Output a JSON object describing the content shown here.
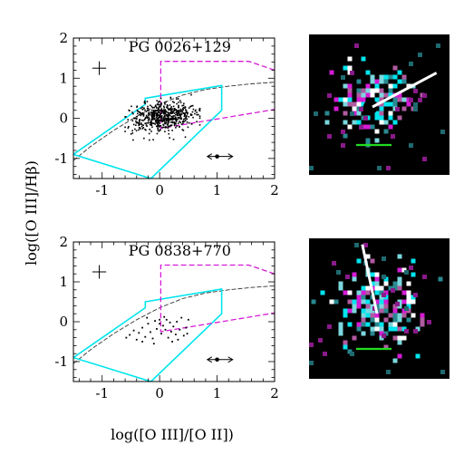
{
  "figure": {
    "ylabel": "log([O III]/Hβ)",
    "xlabel": "log([O III]/[O II])"
  },
  "colors": {
    "model_cyan": "#00e5ee",
    "model_magenta": "#d51bd5",
    "curve": "#333333",
    "points": "#000000",
    "scale_bar": "#22dd22"
  },
  "chart_data": [
    {
      "type": "scatter",
      "title": "PG 0026+129",
      "xlim": [
        -1.5,
        2
      ],
      "ylim": [
        -1.5,
        2
      ],
      "xticks": [
        "-1",
        "0",
        "1",
        "2"
      ],
      "yticks": [
        "-1",
        "0",
        "1",
        "2"
      ],
      "n_points_approx": 600,
      "point_cloud": {
        "x_range": [
          -0.6,
          0.7
        ],
        "y_range": [
          -0.55,
          0.6
        ],
        "x_center": 0.05,
        "y_center": 0.05
      },
      "error_bar": {
        "x": -1.05,
        "y": 1.25,
        "dx": 0.12,
        "dy": 0.17
      },
      "arrow": {
        "x": 1.05,
        "y": -0.95,
        "half_length": 0.22
      },
      "cyan_outline": [
        [
          -1.5,
          -0.9
        ],
        [
          -0.25,
          0.35
        ],
        [
          -0.25,
          0.5
        ],
        [
          1.08,
          0.82
        ],
        [
          1.08,
          0.2
        ],
        [
          -0.15,
          -1.5
        ]
      ],
      "magenta_outline": [
        [
          2.0,
          1.2
        ],
        [
          1.55,
          1.42
        ],
        [
          0.02,
          1.42
        ],
        [
          0.02,
          -0.25
        ],
        [
          2.0,
          0.22
        ]
      ],
      "dashed_curve": [
        [
          -1.5,
          -1.05
        ],
        [
          -1.2,
          -0.7
        ],
        [
          -0.8,
          -0.3
        ],
        [
          -0.4,
          0.05
        ],
        [
          0.0,
          0.35
        ],
        [
          0.4,
          0.58
        ],
        [
          0.8,
          0.72
        ],
        [
          1.2,
          0.8
        ],
        [
          1.6,
          0.86
        ],
        [
          2.0,
          0.9
        ]
      ]
    },
    {
      "type": "scatter",
      "title": "PG 0838+770",
      "xlim": [
        -1.5,
        2
      ],
      "ylim": [
        -1.5,
        2
      ],
      "xticks": [
        "-1",
        "0",
        "1",
        "2"
      ],
      "yticks": [
        "-1",
        "0",
        "1",
        "2"
      ],
      "points": [
        [
          -0.58,
          -0.4
        ],
        [
          -0.52,
          -0.33
        ],
        [
          -0.45,
          -0.22
        ],
        [
          -0.4,
          -0.45
        ],
        [
          -0.36,
          -0.28
        ],
        [
          -0.3,
          -0.15
        ],
        [
          -0.25,
          -0.38
        ],
        [
          -0.2,
          -0.05
        ],
        [
          -0.16,
          -0.26
        ],
        [
          -0.12,
          -0.42
        ],
        [
          -0.08,
          0.02
        ],
        [
          -0.05,
          -0.18
        ],
        [
          0.0,
          0.05
        ],
        [
          0.03,
          -0.3
        ],
        [
          0.06,
          -0.1
        ],
        [
          0.1,
          -0.2
        ],
        [
          0.12,
          0.05
        ],
        [
          0.15,
          -0.4
        ],
        [
          0.18,
          -0.02
        ],
        [
          0.2,
          -0.25
        ],
        [
          0.24,
          -0.12
        ],
        [
          0.28,
          -0.32
        ],
        [
          0.3,
          0.0
        ],
        [
          0.32,
          -0.45
        ],
        [
          0.35,
          -0.2
        ],
        [
          0.38,
          0.1
        ],
        [
          0.42,
          -0.35
        ],
        [
          0.46,
          -0.15
        ],
        [
          -0.22,
          0.1
        ],
        [
          -0.1,
          -0.55
        ],
        [
          0.0,
          -0.05
        ],
        [
          0.08,
          0.12
        ],
        [
          0.22,
          -0.5
        ],
        [
          0.48,
          -0.3
        ],
        [
          0.5,
          0.05
        ],
        [
          -0.3,
          -0.5
        ]
      ],
      "error_bar": {
        "x": -1.05,
        "y": 1.25,
        "dx": 0.12,
        "dy": 0.17
      },
      "arrow": {
        "x": 1.05,
        "y": -0.95,
        "half_length": 0.22
      },
      "cyan_outline": [
        [
          -1.5,
          -0.9
        ],
        [
          -0.25,
          0.35
        ],
        [
          -0.25,
          0.5
        ],
        [
          1.08,
          0.82
        ],
        [
          1.08,
          0.2
        ],
        [
          -0.15,
          -1.5
        ]
      ],
      "magenta_outline": [
        [
          2.0,
          1.2
        ],
        [
          1.55,
          1.42
        ],
        [
          0.02,
          1.42
        ],
        [
          0.02,
          -0.25
        ],
        [
          2.0,
          0.22
        ]
      ],
      "dashed_curve": [
        [
          -1.5,
          -1.05
        ],
        [
          -1.2,
          -0.7
        ],
        [
          -0.8,
          -0.3
        ],
        [
          -0.4,
          0.05
        ],
        [
          0.0,
          0.35
        ],
        [
          0.4,
          0.58
        ],
        [
          0.8,
          0.72
        ],
        [
          1.2,
          0.8
        ],
        [
          1.6,
          0.86
        ],
        [
          2.0,
          0.9
        ]
      ]
    }
  ]
}
